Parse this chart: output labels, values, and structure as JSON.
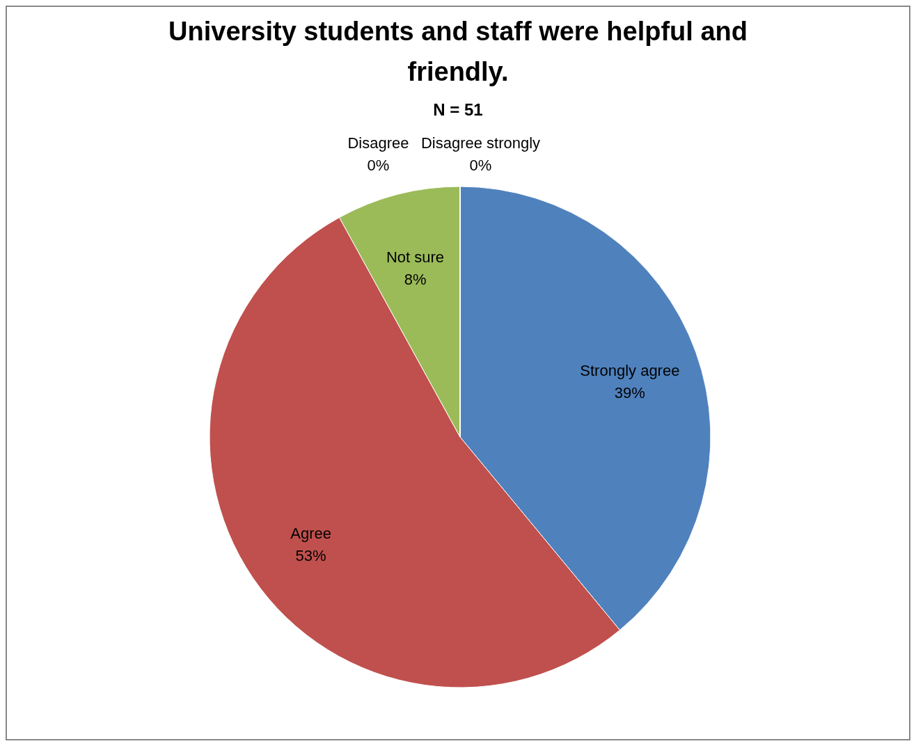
{
  "chart_data": {
    "type": "pie",
    "title": "University students and staff were helpful and friendly.",
    "subtitle": "N = 51",
    "categories": [
      "Strongly agree",
      "Agree",
      "Not sure",
      "Disagree",
      "Disagree strongly"
    ],
    "values": [
      39,
      53,
      8,
      0,
      0
    ],
    "colors": [
      "#4f81bd",
      "#c0504d",
      "#9bbb59",
      "#8064a2",
      "#4bacc6"
    ],
    "value_labels": [
      "39%",
      "53%",
      "8%",
      "0%",
      "0%"
    ],
    "legend": false
  }
}
